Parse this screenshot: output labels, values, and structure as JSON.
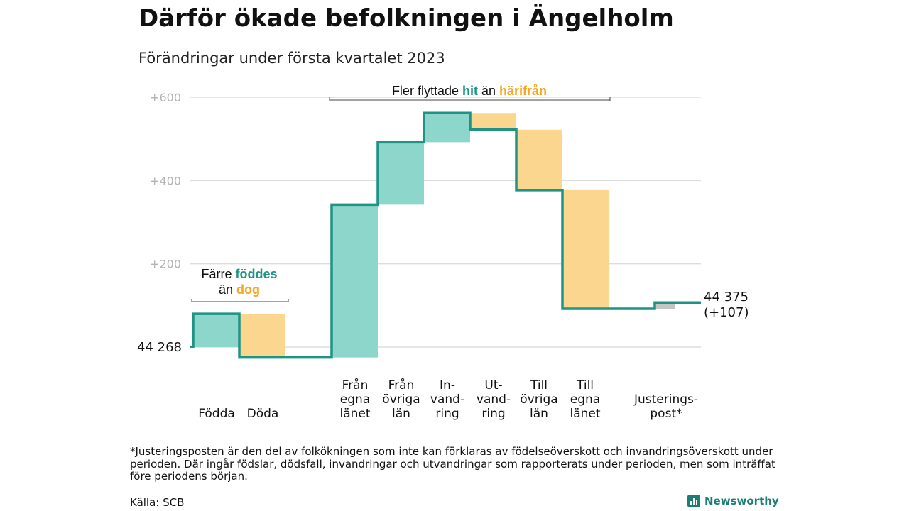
{
  "title": "Därför ökade befolkningen i Ängelholm",
  "subtitle": "Förändringar under första kvartalet 2023",
  "chart_data": {
    "type": "waterfall",
    "start_value": 44268,
    "start_label": "44 268",
    "end_label_lines": [
      "44 375",
      "(+107)"
    ],
    "ylim": [
      -25,
      600
    ],
    "yticks": [
      {
        "value": 200,
        "label": "+200"
      },
      {
        "value": 400,
        "label": "+400"
      },
      {
        "value": 600,
        "label": "+600"
      }
    ],
    "steps": [
      {
        "label_lines": [
          "Födda"
        ],
        "change": 80,
        "kind": "in"
      },
      {
        "label_lines": [
          "Döda"
        ],
        "change": -105,
        "kind": "out"
      },
      {
        "label_lines": [
          "Från",
          "egna",
          "länet"
        ],
        "change": 367,
        "kind": "in"
      },
      {
        "label_lines": [
          "Från",
          "övriga",
          "län"
        ],
        "change": 150,
        "kind": "in"
      },
      {
        "label_lines": [
          "In-",
          "vand-",
          "ring"
        ],
        "change": 70,
        "kind": "in"
      },
      {
        "label_lines": [
          "Ut-",
          "vand-",
          "ring"
        ],
        "change": -40,
        "kind": "out"
      },
      {
        "label_lines": [
          "Till",
          "övriga",
          "län"
        ],
        "change": -145,
        "kind": "out"
      },
      {
        "label_lines": [
          "Till",
          "egna",
          "länet"
        ],
        "change": -285,
        "kind": "out"
      },
      {
        "label_lines": [
          "Justerings-",
          "post*"
        ],
        "change": 15,
        "kind": "adjust"
      }
    ],
    "annotations": [
      {
        "parts": [
          {
            "text": "Fler flyttade ",
            "role": "plain"
          },
          {
            "text": "hit",
            "role": "in"
          },
          {
            "text": " än ",
            "role": "plain"
          },
          {
            "text": "härifrån",
            "role": "out"
          }
        ]
      },
      {
        "lines": [
          [
            {
              "text": "Färre ",
              "role": "plain"
            },
            {
              "text": "föddes",
              "role": "in"
            }
          ],
          [
            {
              "text": "än ",
              "role": "plain"
            },
            {
              "text": "dog",
              "role": "out"
            }
          ]
        ]
      }
    ]
  },
  "colors": {
    "line": "#1d9484",
    "in_fill": "#8dd6cc",
    "out_fill": "#fbd68f",
    "adjust_fill": "#c4c4c4",
    "in_text": "#1d9484",
    "out_text": "#f5a623",
    "grid": "#dddddd",
    "tick_text": "#b3b3b3"
  },
  "footnote": "*Justeringsposten är den del av folkökningen som inte kan förklaras av födelseöverskott och invandringsöverskott under perioden. Där ingår födslar, dödsfall, invandringar och utvandringar som rapporterats under perioden, men som inträffat före periodens början.",
  "source": "Källa: SCB",
  "brand": "Newsworthy"
}
